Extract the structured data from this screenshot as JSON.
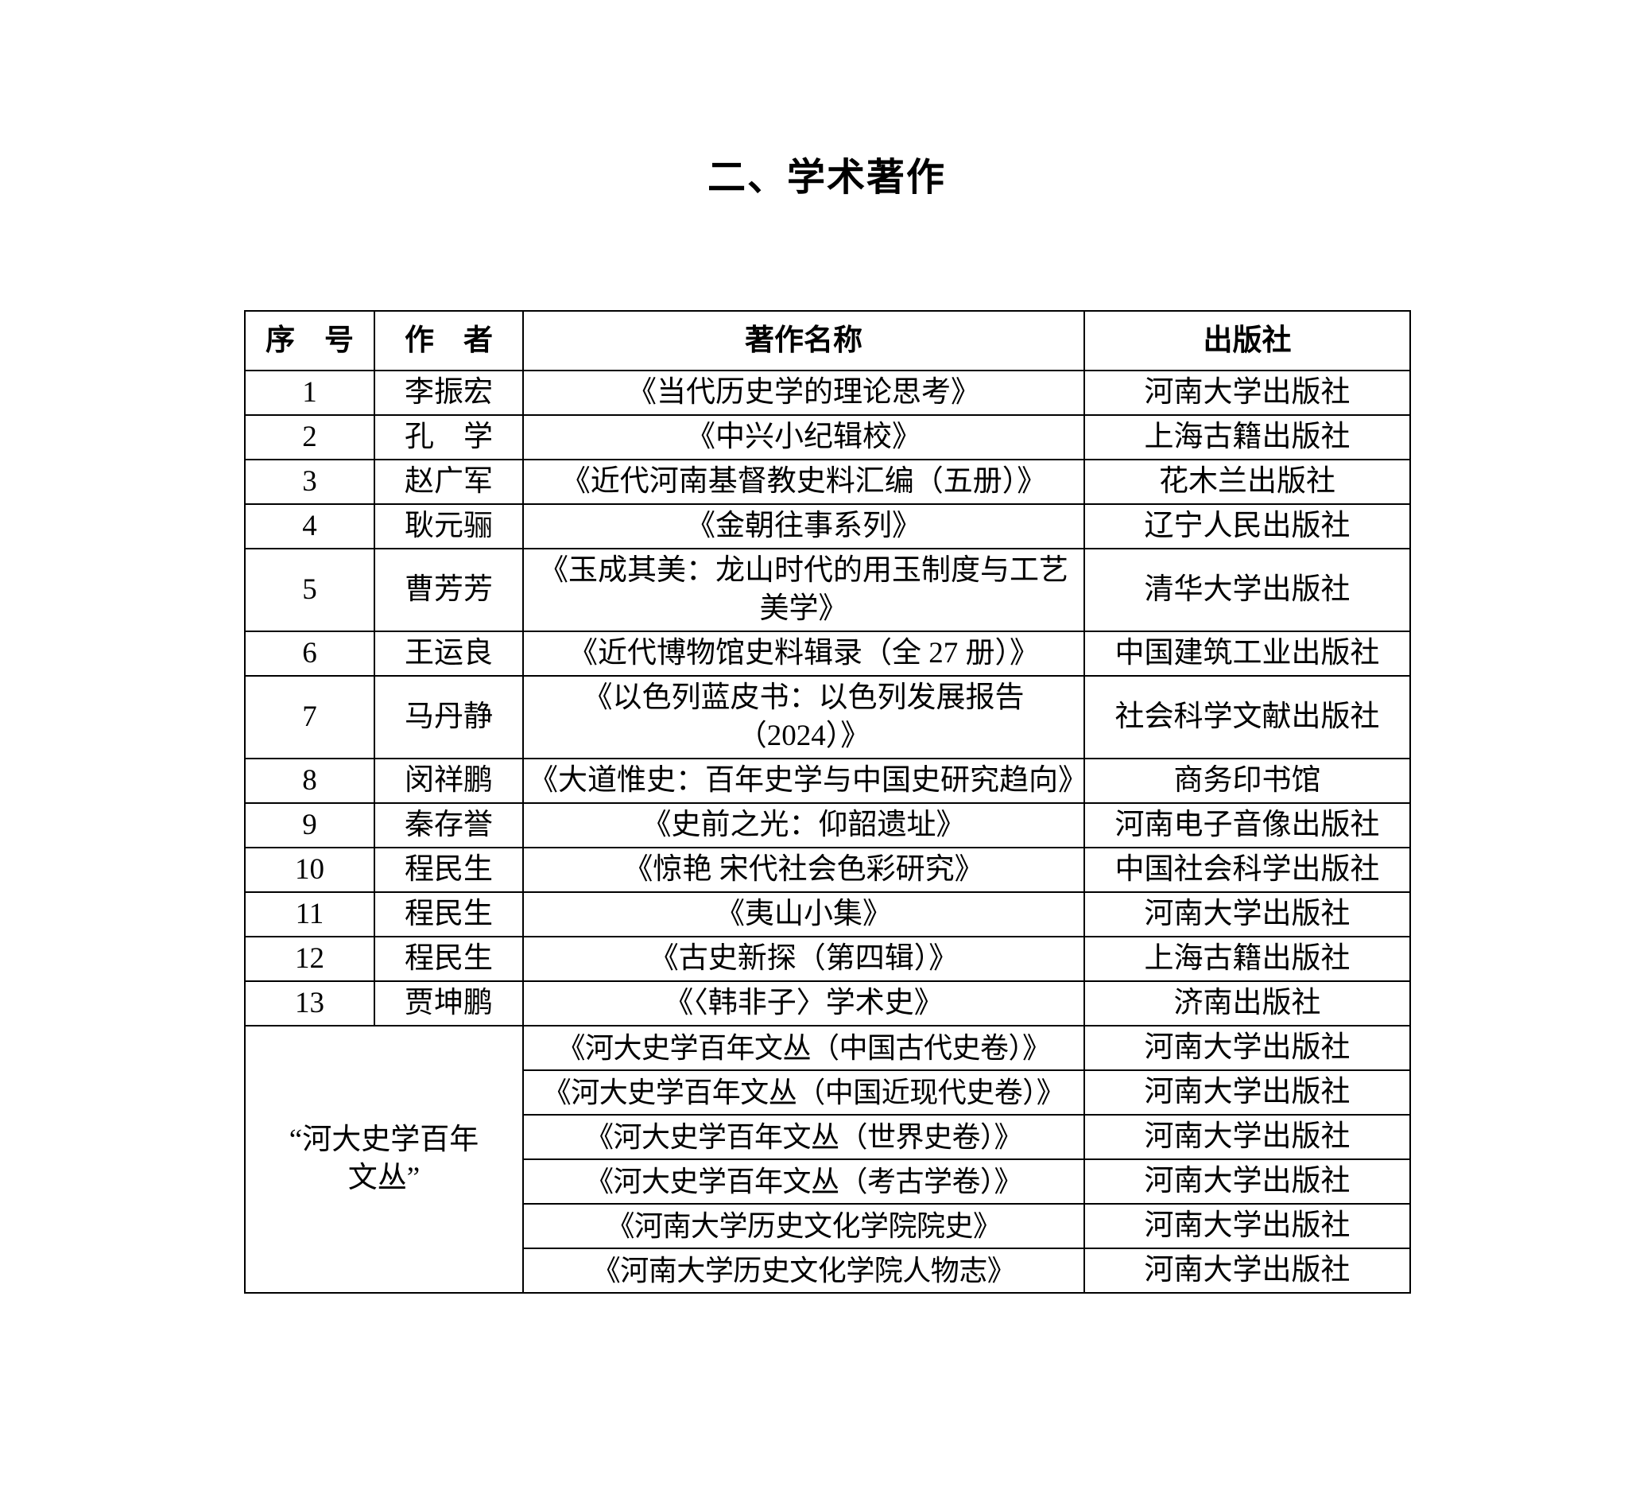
{
  "page": {
    "title": "二、学术著作"
  },
  "colors": {
    "background": "#ffffff",
    "text": "#000000",
    "table_border": "#000000"
  },
  "table": {
    "headers": [
      "序　号",
      "作　者",
      "著作名称",
      "出版社"
    ],
    "rows": [
      {
        "no": "1",
        "author": "李振宏",
        "title": "《当代历史学的理论思考》",
        "publisher": "河南大学出版社"
      },
      {
        "no": "2",
        "author": "孔　学",
        "title": "《中兴小纪辑校》",
        "publisher": "上海古籍出版社"
      },
      {
        "no": "3",
        "author": "赵广军",
        "title": "《近代河南基督教史料汇编（五册）》",
        "publisher": "花木兰出版社"
      },
      {
        "no": "4",
        "author": "耿元骊",
        "title": "《金朝往事系列》",
        "publisher": "辽宁人民出版社"
      },
      {
        "no": "5",
        "author": "曹芳芳",
        "title": "《玉成其美：龙山时代的用玉制度与工艺美学》",
        "publisher": "清华大学出版社"
      },
      {
        "no": "6",
        "author": "王运良",
        "title": "《近代博物馆史料辑录（全 27 册）》",
        "publisher": "中国建筑工业出版社"
      },
      {
        "no": "7",
        "author": "马丹静",
        "title": "《以色列蓝皮书：以色列发展报告（2024）》",
        "publisher": "社会科学文献出版社"
      },
      {
        "no": "8",
        "author": "闵祥鹏",
        "title": "《大道惟史：百年史学与中国史研究趋向》",
        "publisher": "商务印书馆"
      },
      {
        "no": "9",
        "author": "秦存誉",
        "title": "《史前之光：仰韶遗址》",
        "publisher": "河南电子音像出版社"
      },
      {
        "no": "10",
        "author": "程民生",
        "title": "《惊艳 宋代社会色彩研究》",
        "publisher": "中国社会科学出版社"
      },
      {
        "no": "11",
        "author": "程民生",
        "title": "《夷山小集》",
        "publisher": "河南大学出版社"
      },
      {
        "no": "12",
        "author": "程民生",
        "title": "《古史新探（第四辑）》",
        "publisher": "上海古籍出版社"
      },
      {
        "no": "13",
        "author": "贾坤鹏",
        "title": "《〈韩非子〉学术史》",
        "publisher": "济南出版社"
      }
    ],
    "group": {
      "label": "“河大史学百年\n文丛”",
      "rows": [
        {
          "title": "《河大史学百年文丛（中国古代史卷）》",
          "publisher": "河南大学出版社"
        },
        {
          "title": "《河大史学百年文丛（中国近现代史卷）》",
          "publisher": "河南大学出版社"
        },
        {
          "title": "《河大史学百年文丛（世界史卷）》",
          "publisher": "河南大学出版社"
        },
        {
          "title": "《河大史学百年文丛（考古学卷）》",
          "publisher": "河南大学出版社"
        },
        {
          "title": "《河南大学历史文化学院院史》",
          "publisher": "河南大学出版社"
        },
        {
          "title": "《河南大学历史文化学院人物志》",
          "publisher": "河南大学出版社"
        }
      ]
    }
  }
}
